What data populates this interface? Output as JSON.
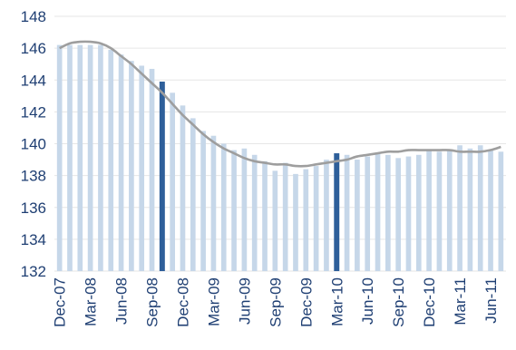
{
  "chart_data": {
    "type": "bar",
    "title": "",
    "xlabel": "",
    "ylabel": "",
    "ylim": [
      132,
      148
    ],
    "yticks": [
      132,
      134,
      136,
      138,
      140,
      142,
      144,
      146,
      148
    ],
    "grid": true,
    "legend": "none",
    "x_tick_labels": [
      "Dec-07",
      "Mar-08",
      "Jun-08",
      "Sep-08",
      "Dec-08",
      "Mar-09",
      "Jun-09",
      "Sep-09",
      "Dec-09",
      "Mar-10",
      "Jun-10",
      "Sep-10",
      "Dec-10",
      "Mar-11",
      "Jun-11"
    ],
    "months": [
      "Dec-07",
      "Jan-08",
      "Feb-08",
      "Mar-08",
      "Apr-08",
      "May-08",
      "Jun-08",
      "Jul-08",
      "Aug-08",
      "Sep-08",
      "Oct-08",
      "Nov-08",
      "Dec-08",
      "Jan-09",
      "Feb-09",
      "Mar-09",
      "Apr-09",
      "May-09",
      "Jun-09",
      "Jul-09",
      "Aug-09",
      "Sep-09",
      "Oct-09",
      "Nov-09",
      "Dec-09",
      "Jan-10",
      "Feb-10",
      "Mar-10",
      "Apr-10",
      "May-10",
      "Jun-10",
      "Jul-10",
      "Aug-10",
      "Sep-10",
      "Oct-10",
      "Nov-10",
      "Dec-10",
      "Jan-11",
      "Feb-11",
      "Mar-11",
      "Apr-11",
      "May-11",
      "Jun-11",
      "Jul-11"
    ],
    "values": [
      146.2,
      146.2,
      146.2,
      146.2,
      146.2,
      145.9,
      145.6,
      145.2,
      144.9,
      144.7,
      143.9,
      143.2,
      142.4,
      141.6,
      140.8,
      140.5,
      140.0,
      139.6,
      139.7,
      139.3,
      138.9,
      138.3,
      138.8,
      138.1,
      138.4,
      138.6,
      139.0,
      139.4,
      139.3,
      139.0,
      139.2,
      139.4,
      139.3,
      139.1,
      139.2,
      139.3,
      139.6,
      139.5,
      139.6,
      139.9,
      139.7,
      139.9,
      139.6,
      139.5
    ],
    "highlight_indices": [
      10,
      27
    ],
    "trend": [
      146.0,
      146.3,
      146.4,
      146.4,
      146.3,
      146.0,
      145.5,
      145.0,
      144.4,
      143.8,
      143.2,
      142.5,
      141.8,
      141.2,
      140.6,
      140.1,
      139.7,
      139.4,
      139.1,
      138.9,
      138.8,
      138.7,
      138.7,
      138.6,
      138.6,
      138.7,
      138.8,
      138.9,
      139.0,
      139.2,
      139.3,
      139.4,
      139.5,
      139.5,
      139.6,
      139.6,
      139.6,
      139.6,
      139.6,
      139.5,
      139.5,
      139.5,
      139.6,
      139.8
    ],
    "colors": {
      "bar": "#c6d7e9",
      "bar_highlight": "#2e5f9a",
      "trend": "#9e9e9e",
      "axis": "#1f3f73"
    }
  }
}
